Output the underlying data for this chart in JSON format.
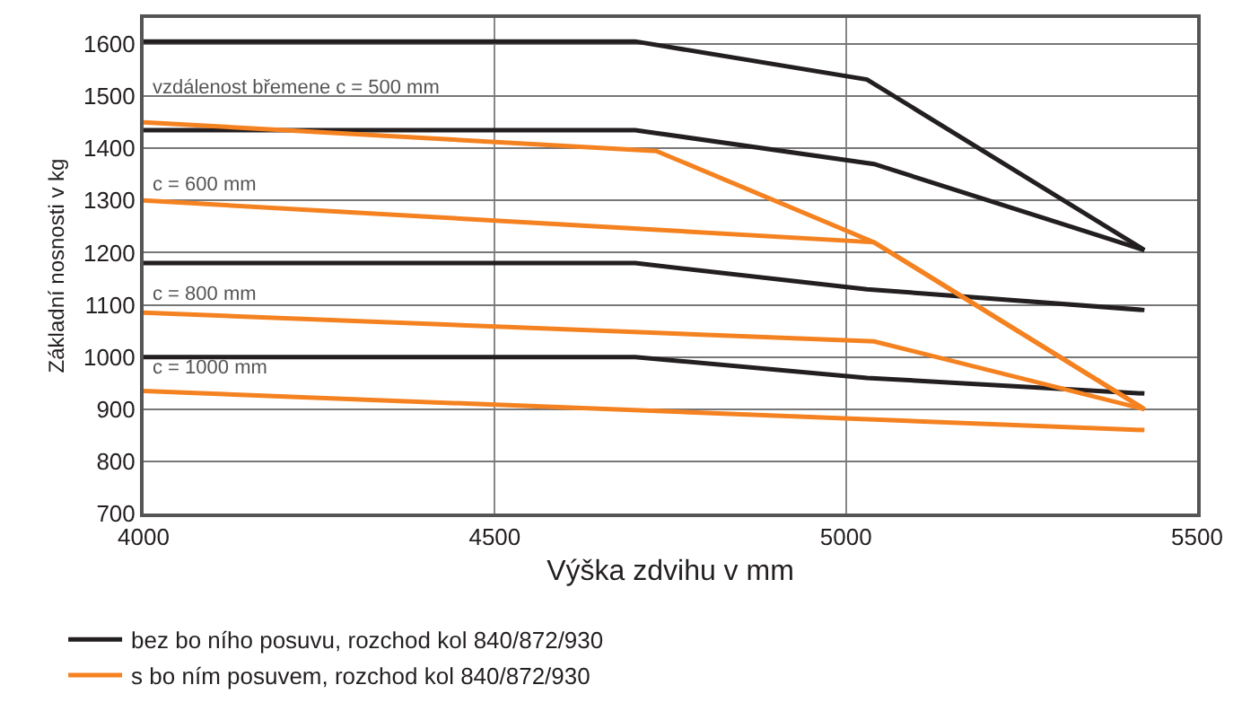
{
  "chart_data": {
    "type": "line",
    "xlabel": "Výška zdvihu v mm",
    "ylabel": "Základní nosnosti v kg",
    "xlim": [
      4000,
      5500
    ],
    "xticks": [
      4000,
      4500,
      5000,
      5500
    ],
    "ylim": [
      700,
      1650
    ],
    "yticks": [
      700,
      800,
      900,
      1000,
      1100,
      1200,
      1300,
      1400,
      1500,
      1600
    ],
    "grid": true,
    "legend": "bottom left",
    "marker": "none",
    "line_style": "solid",
    "series": [
      {
        "name": "bez bo ního posuvu, rozchod kol 840/872/930",
        "color": "#231f20",
        "x": [
          4000,
          4700,
          5030,
          5425
        ],
        "values": [
          1605,
          1605,
          1532,
          1205
        ]
      },
      {
        "color": "#231f20",
        "x": [
          4000,
          4700,
          5040,
          5425
        ],
        "values": [
          1435,
          1435,
          1370,
          1205
        ]
      },
      {
        "color": "#231f20",
        "x": [
          4000,
          4700,
          5030,
          5425
        ],
        "values": [
          1180,
          1180,
          1130,
          1090
        ]
      },
      {
        "color": "#231f20",
        "x": [
          4000,
          4700,
          5030,
          5425
        ],
        "values": [
          1000,
          1000,
          960,
          930
        ]
      },
      {
        "name": "s bo ním posuvem, rozchod kol 840/872/930",
        "color": "#f58220",
        "x": [
          4000,
          4730,
          5040,
          5425
        ],
        "values": [
          1450,
          1395,
          1220,
          900
        ]
      },
      {
        "color": "#f58220",
        "x": [
          4000,
          5040,
          5425
        ],
        "values": [
          1300,
          1220,
          900
        ]
      },
      {
        "color": "#f58220",
        "x": [
          4000,
          5040,
          5425
        ],
        "values": [
          1085,
          1030,
          900
        ]
      },
      {
        "color": "#f58220",
        "x": [
          4000,
          5425
        ],
        "values": [
          935,
          860
        ]
      }
    ],
    "annotations": [
      "vzdálenost břemene c = 500 mm",
      "c = 600 mm",
      "c = 800 mm",
      "c = 1000 mm"
    ]
  }
}
